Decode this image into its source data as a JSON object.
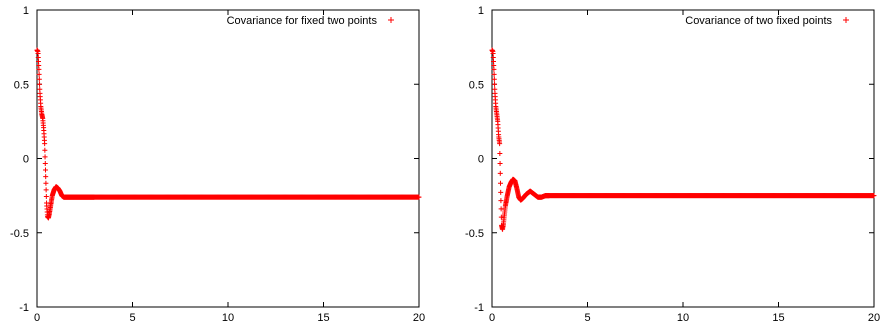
{
  "chart_data": [
    {
      "type": "scatter",
      "title": "",
      "xlabel": "",
      "ylabel": "",
      "xlim": [
        0,
        20
      ],
      "ylim": [
        -1,
        1
      ],
      "xticks": [
        "0",
        "5",
        "10",
        "15",
        "20"
      ],
      "yticks": [
        "-1",
        "-0.5",
        "0",
        "0.5",
        "1"
      ],
      "grid": false,
      "legend_position": "top-right",
      "marker": "+",
      "color": "#ff0000",
      "series": [
        {
          "name": "Covariance for fixed two points",
          "x": [
            0,
            0.05,
            0.1,
            0.15,
            0.2,
            0.25,
            0.3,
            0.35,
            0.4,
            0.45,
            0.5,
            0.55,
            0.6,
            0.65,
            0.7,
            0.8,
            0.9,
            1.0,
            1.1,
            1.2,
            1.3,
            1.4,
            1.5,
            1.6,
            1.8,
            2.0,
            2.5,
            3,
            4,
            5,
            6,
            7,
            8,
            9,
            10,
            11,
            12,
            13,
            14,
            15,
            16,
            17,
            18,
            19,
            20
          ],
          "y": [
            0.73,
            0.72,
            0.6,
            0.45,
            0.35,
            0.3,
            0.27,
            0.2,
            0.1,
            -0.1,
            -0.3,
            -0.39,
            -0.4,
            -0.37,
            -0.33,
            -0.25,
            -0.21,
            -0.19,
            -0.2,
            -0.22,
            -0.25,
            -0.26,
            -0.26,
            -0.26,
            -0.26,
            -0.26,
            -0.26,
            -0.26,
            -0.26,
            -0.26,
            -0.26,
            -0.26,
            -0.26,
            -0.26,
            -0.26,
            -0.26,
            -0.26,
            -0.26,
            -0.26,
            -0.26,
            -0.26,
            -0.26,
            -0.26,
            -0.26,
            -0.26
          ]
        }
      ]
    },
    {
      "type": "scatter",
      "title": "",
      "xlabel": "",
      "ylabel": "",
      "xlim": [
        0,
        20
      ],
      "ylim": [
        -1,
        1
      ],
      "xticks": [
        "0",
        "5",
        "10",
        "15",
        "20"
      ],
      "yticks": [
        "-1",
        "-0.5",
        "0",
        "0.5",
        "1"
      ],
      "grid": false,
      "legend_position": "top-right",
      "marker": "+",
      "color": "#ff0000",
      "series": [
        {
          "name": "Covariance of two fixed points",
          "x": [
            0,
            0.05,
            0.1,
            0.15,
            0.2,
            0.25,
            0.3,
            0.35,
            0.4,
            0.45,
            0.5,
            0.55,
            0.6,
            0.65,
            0.7,
            0.8,
            0.9,
            1.0,
            1.1,
            1.2,
            1.3,
            1.4,
            1.5,
            1.6,
            1.8,
            2.0,
            2.2,
            2.4,
            2.6,
            2.8,
            3,
            4,
            5,
            6,
            7,
            8,
            9,
            10,
            11,
            12,
            13,
            14,
            15,
            16,
            17,
            18,
            19,
            20
          ],
          "y": [
            0.73,
            0.72,
            0.6,
            0.45,
            0.35,
            0.3,
            0.25,
            0.15,
            0.1,
            -0.2,
            -0.45,
            -0.48,
            -0.44,
            -0.38,
            -0.32,
            -0.25,
            -0.19,
            -0.16,
            -0.14,
            -0.15,
            -0.2,
            -0.26,
            -0.28,
            -0.27,
            -0.24,
            -0.22,
            -0.24,
            -0.26,
            -0.26,
            -0.25,
            -0.25,
            -0.25,
            -0.25,
            -0.25,
            -0.25,
            -0.25,
            -0.25,
            -0.25,
            -0.25,
            -0.25,
            -0.25,
            -0.25,
            -0.25,
            -0.25,
            -0.25,
            -0.25,
            -0.25,
            -0.25
          ]
        }
      ]
    }
  ]
}
